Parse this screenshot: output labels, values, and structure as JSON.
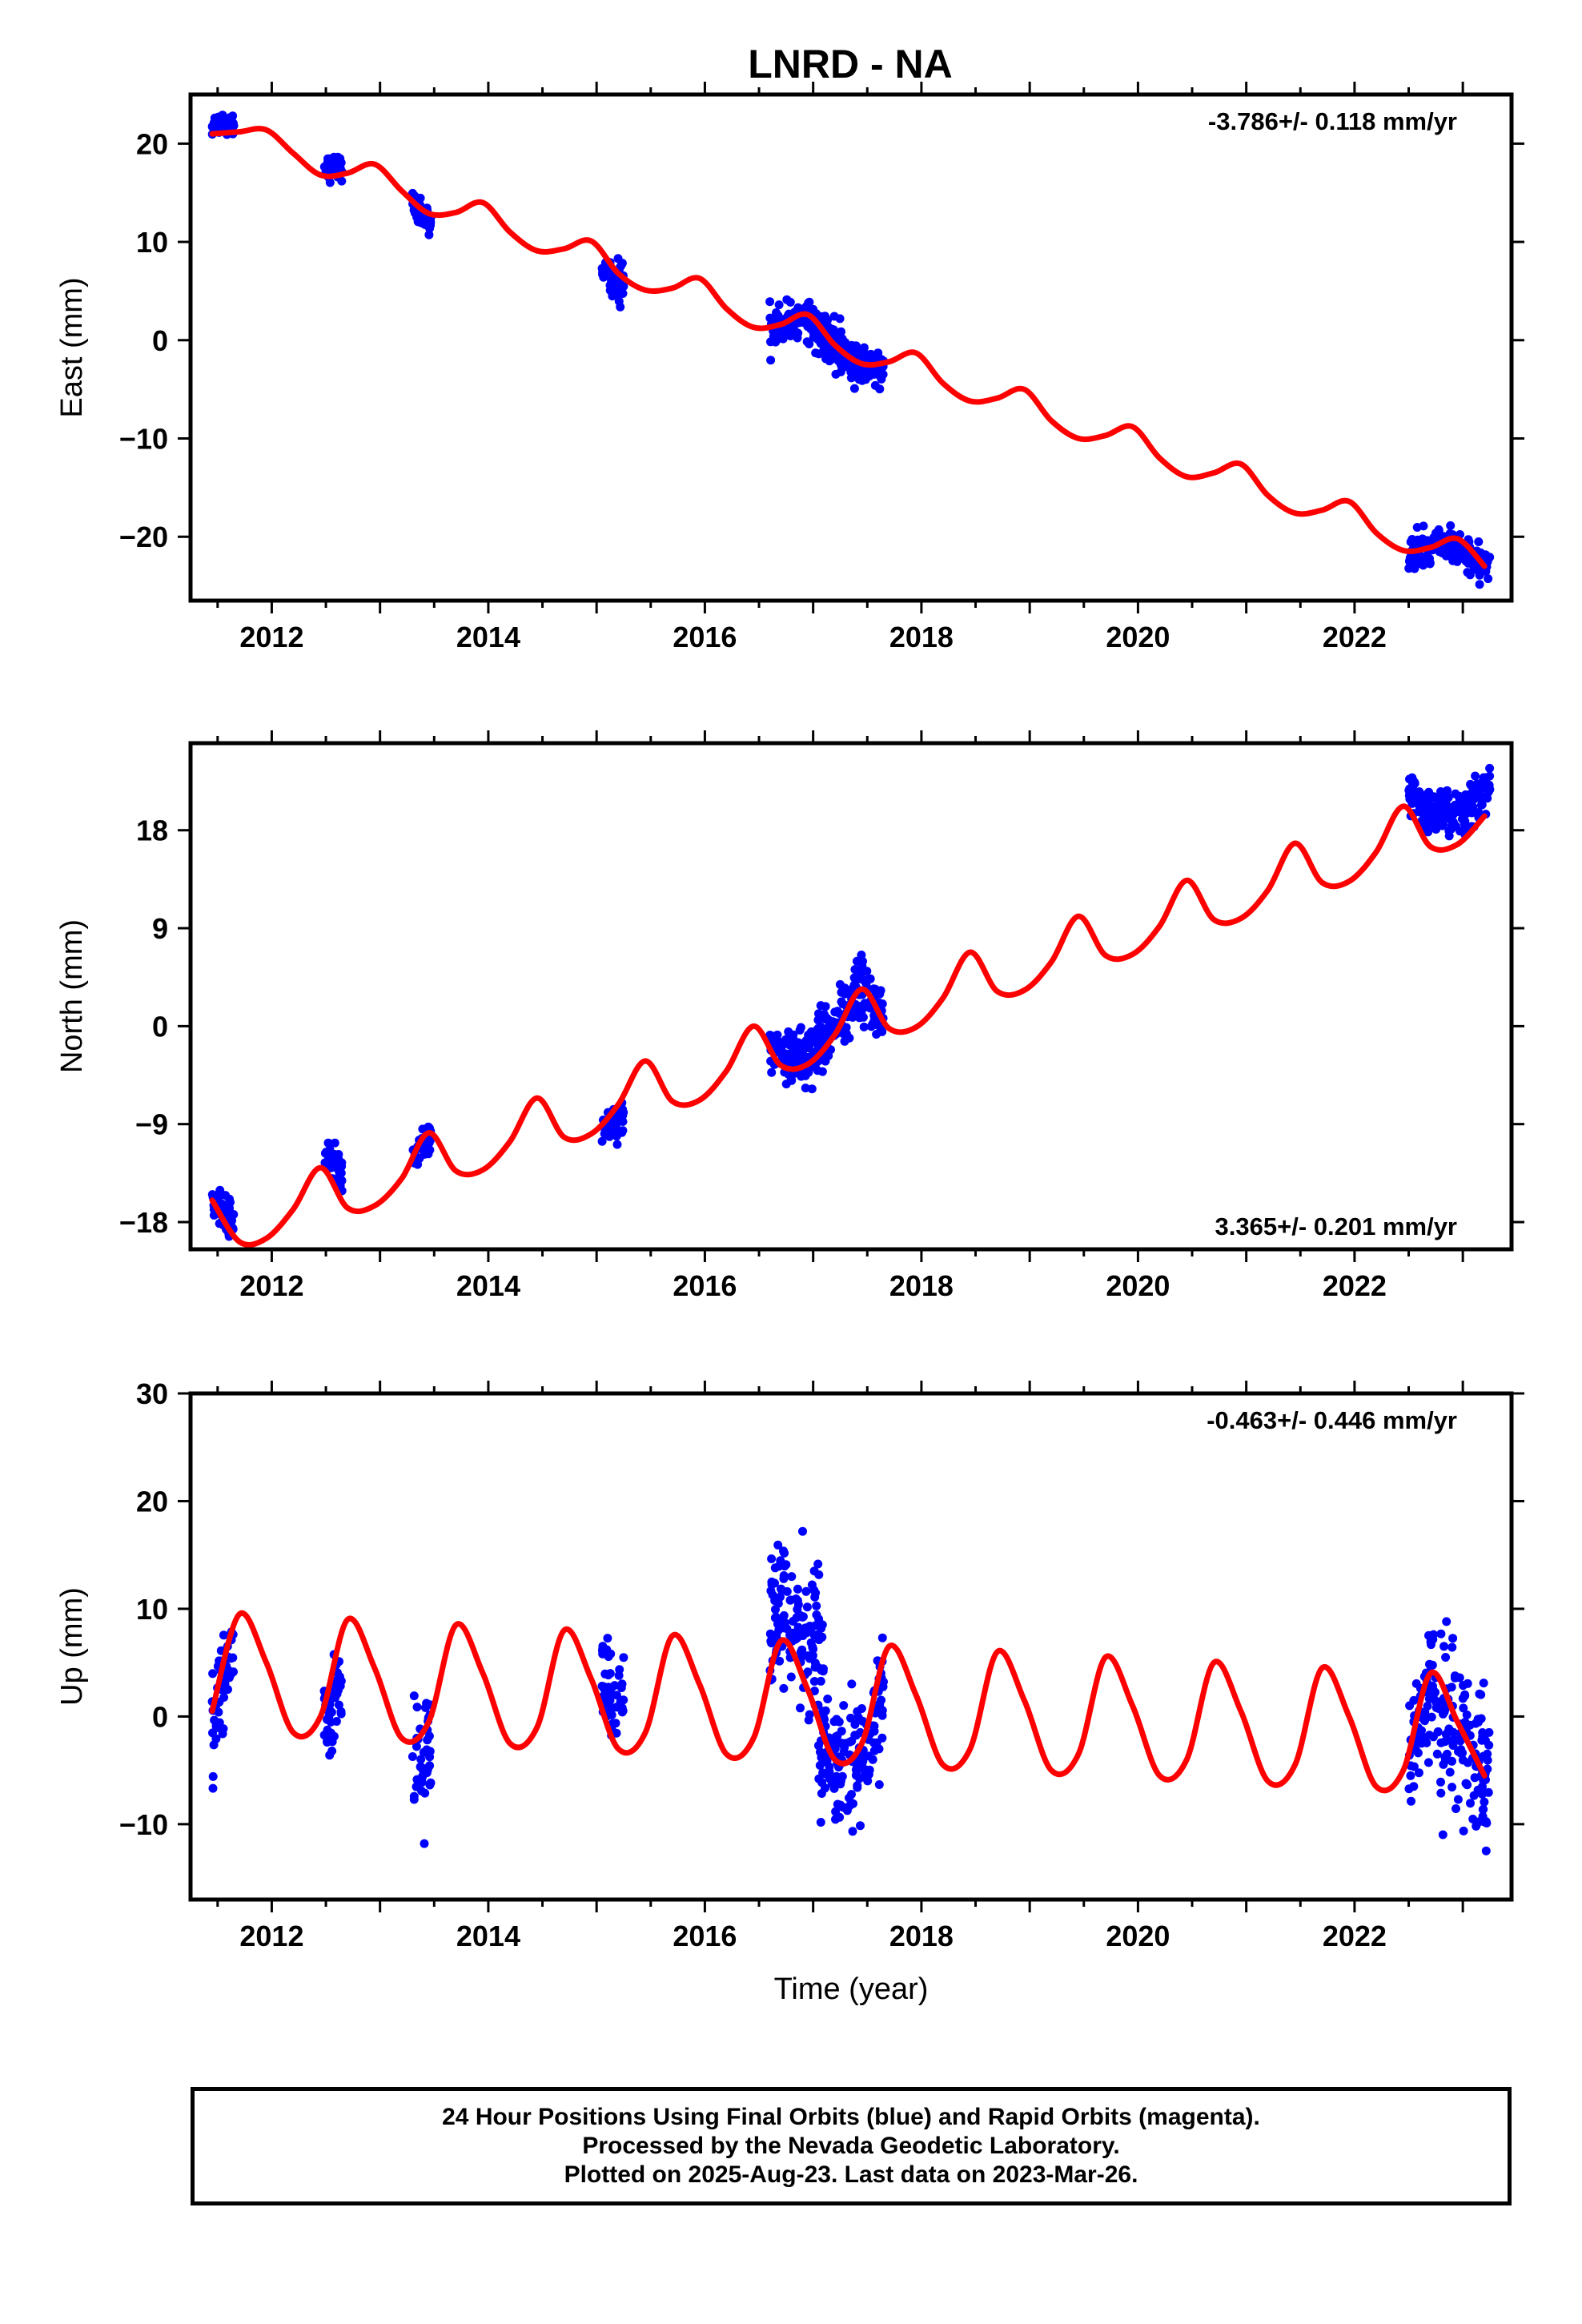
{
  "title": "LNRD - NA",
  "footer": {
    "line1": "24 Hour Positions Using Final Orbits (blue) and Rapid Orbits (magenta).",
    "line2": "Processed by the Nevada Geodetic Laboratory.",
    "line3": "Plotted on 2025-Aug-23. Last data on 2023-Mar-26."
  },
  "colors": {
    "data": "#0000ff",
    "model": "#ff0000",
    "frame": "#000000"
  },
  "chart_data": [
    {
      "type": "scatter",
      "name": "east",
      "ylabel": "East (mm)",
      "xlabel": "",
      "xlim": [
        2011.25,
        2023.45
      ],
      "ylim": [
        -26.5,
        25
      ],
      "xticks": [
        "2012",
        "2014",
        "2016",
        "2018",
        "2020",
        "2022"
      ],
      "yticks": [
        -20,
        -10,
        0,
        10,
        20
      ],
      "rate_label": "-3.786+/- 0.118 mm/yr",
      "rate_position": "top-right",
      "series": [
        {
          "name": "24 Hour Positions",
          "kind": "points",
          "clusters": [
            {
              "start": 2011.45,
              "end": 2011.65,
              "center": 22.0,
              "spread": 1.0
            },
            {
              "start": 2012.48,
              "end": 2012.65,
              "center": 17.5,
              "spread": 1.0
            },
            {
              "start": 2013.3,
              "end": 2013.47,
              "center": 12.8,
              "spread": 1.2
            },
            {
              "start": 2015.05,
              "end": 2015.25,
              "center": 6.5,
              "spread": 1.8
            },
            {
              "start": 2016.6,
              "end": 2017.3,
              "center": 2.2,
              "spread": 1.6
            },
            {
              "start": 2017.0,
              "end": 2017.65,
              "center": -2.0,
              "spread": 1.5
            },
            {
              "start": 2022.5,
              "end": 2023.25,
              "center": -21.0,
              "spread": 1.4
            }
          ]
        },
        {
          "name": "Model",
          "kind": "line",
          "x": [
            2011.45,
            2011.7,
            2011.95,
            2012.2,
            2012.45,
            2012.7,
            2012.95,
            2013.2,
            2013.45,
            2013.7,
            2013.95,
            2014.2,
            2014.45,
            2014.7,
            2014.95,
            2015.2,
            2015.45,
            2015.7,
            2015.95,
            2016.2,
            2016.45,
            2016.7,
            2016.95,
            2017.2,
            2017.45,
            2017.7,
            2017.95,
            2018.2,
            2018.45,
            2018.7,
            2018.95,
            2019.2,
            2019.45,
            2019.7,
            2019.95,
            2020.2,
            2020.45,
            2020.7,
            2020.95,
            2021.2,
            2021.45,
            2021.7,
            2021.95,
            2022.2,
            2022.45,
            2022.7,
            2022.95,
            2023.2
          ],
          "y": [
            21.0,
            21.2,
            21.4,
            19.0,
            16.8,
            17.0,
            17.9,
            15.2,
            12.9,
            13.0,
            14.0,
            11.0,
            9.1,
            9.3,
            10.1,
            6.8,
            5.1,
            5.3,
            6.3,
            3.2,
            1.3,
            1.6,
            2.6,
            -0.5,
            -2.4,
            -2.2,
            -1.3,
            -4.4,
            -6.2,
            -5.9,
            -5.0,
            -8.2,
            -10.0,
            -9.7,
            -8.8,
            -12.0,
            -13.9,
            -13.5,
            -12.6,
            -15.8,
            -17.6,
            -17.3,
            -16.4,
            -19.6,
            -21.4,
            -21.1,
            -20.2,
            -23.0
          ]
        }
      ]
    },
    {
      "type": "scatter",
      "name": "north",
      "ylabel": "North (mm)",
      "xlabel": "",
      "xlim": [
        2011.25,
        2023.45
      ],
      "ylim": [
        -20.5,
        26
      ],
      "xticks": [
        "2012",
        "2014",
        "2016",
        "2018",
        "2020",
        "2022"
      ],
      "yticks": [
        -18,
        -9,
        0,
        9,
        18
      ],
      "rate_label": "3.365+/- 0.201 mm/yr",
      "rate_position": "bottom-right",
      "series": [
        {
          "name": "24 Hour Positions",
          "kind": "points",
          "clusters": [
            {
              "start": 2011.45,
              "end": 2011.65,
              "center": -17.0,
              "spread": 1.3
            },
            {
              "start": 2012.48,
              "end": 2012.65,
              "center": -12.5,
              "spread": 1.3
            },
            {
              "start": 2013.3,
              "end": 2013.47,
              "center": -11.0,
              "spread": 1.5
            },
            {
              "start": 2015.05,
              "end": 2015.25,
              "center": -9.0,
              "spread": 1.3
            },
            {
              "start": 2016.6,
              "end": 2017.05,
              "center": -3.0,
              "spread": 2.0
            },
            {
              "start": 2017.0,
              "end": 2017.65,
              "center": 1.5,
              "spread": 2.5
            },
            {
              "start": 2022.5,
              "end": 2023.25,
              "center": 19.5,
              "spread": 1.6
            }
          ]
        },
        {
          "name": "Model",
          "kind": "line",
          "x": [
            2011.45,
            2011.7,
            2011.95,
            2012.2,
            2012.45,
            2012.7,
            2012.95,
            2013.2,
            2013.45,
            2013.7,
            2013.95,
            2014.2,
            2014.45,
            2014.7,
            2014.95,
            2015.2,
            2015.45,
            2015.7,
            2015.95,
            2016.2,
            2016.45,
            2016.7,
            2016.95,
            2017.2,
            2017.45,
            2017.7,
            2017.95,
            2018.2,
            2018.45,
            2018.7,
            2018.95,
            2019.2,
            2019.45,
            2019.7,
            2019.95,
            2020.2,
            2020.45,
            2020.7,
            2020.95,
            2021.2,
            2021.45,
            2021.7,
            2021.95,
            2022.2,
            2022.45,
            2022.7,
            2022.95,
            2023.2
          ],
          "y": [
            -16.0,
            -19.8,
            -19.5,
            -16.8,
            -13.0,
            -16.7,
            -16.5,
            -14.0,
            -9.8,
            -13.3,
            -13.2,
            -10.6,
            -6.6,
            -10.2,
            -9.9,
            -7.2,
            -3.2,
            -6.9,
            -6.8,
            -4.1,
            0.0,
            -3.6,
            -3.5,
            -0.8,
            3.4,
            -0.2,
            -0.1,
            2.6,
            6.8,
            3.2,
            3.3,
            5.9,
            10.1,
            6.5,
            6.6,
            9.2,
            13.4,
            9.8,
            9.9,
            12.5,
            16.8,
            13.2,
            13.3,
            16.0,
            20.2,
            16.5,
            16.7,
            19.3
          ]
        }
      ]
    },
    {
      "type": "scatter",
      "name": "up",
      "ylabel": "Up (mm)",
      "xlabel": "Time (year)",
      "xlim": [
        2011.25,
        2023.45
      ],
      "ylim": [
        -17,
        30
      ],
      "xticks": [
        "2012",
        "2014",
        "2016",
        "2018",
        "2020",
        "2022"
      ],
      "yticks": [
        -10,
        0,
        10,
        20,
        30
      ],
      "rate_label": "-0.463+/- 0.446 mm/yr",
      "rate_position": "top-right",
      "series": [
        {
          "name": "24 Hour Positions",
          "kind": "points",
          "clusters": [
            {
              "start": 2011.45,
              "end": 2011.65,
              "center": 3.0,
              "spread": 3.5
            },
            {
              "start": 2012.48,
              "end": 2012.65,
              "center": 1.5,
              "spread": 3.5
            },
            {
              "start": 2013.3,
              "end": 2013.47,
              "center": -4.0,
              "spread": 4.5
            },
            {
              "start": 2015.05,
              "end": 2015.25,
              "center": 1.5,
              "spread": 4.0
            },
            {
              "start": 2016.6,
              "end": 2017.1,
              "center": 9.0,
              "spread": 5.5
            },
            {
              "start": 2017.05,
              "end": 2017.65,
              "center": -4.5,
              "spread": 5.0
            },
            {
              "start": 2022.5,
              "end": 2023.25,
              "center": -1.0,
              "spread": 6.0
            }
          ]
        },
        {
          "name": "Model",
          "kind": "line",
          "x": [
            2011.45,
            2011.7,
            2011.95,
            2012.2,
            2012.45,
            2012.7,
            2012.95,
            2013.2,
            2013.45,
            2013.7,
            2013.95,
            2014.2,
            2014.45,
            2014.7,
            2014.95,
            2015.2,
            2015.45,
            2015.7,
            2015.95,
            2016.2,
            2016.45,
            2016.7,
            2016.95,
            2017.2,
            2017.45,
            2017.7,
            2017.95,
            2018.2,
            2018.45,
            2018.7,
            2018.95,
            2019.2,
            2019.45,
            2019.7,
            2019.95,
            2020.2,
            2020.45,
            2020.7,
            2020.95,
            2021.2,
            2021.45,
            2021.7,
            2021.95,
            2022.2,
            2022.45,
            2022.7,
            2022.95,
            2023.2
          ],
          "y": [
            0.5,
            9.5,
            5.0,
            -1.5,
            0.0,
            9.0,
            4.5,
            -2.0,
            -0.5,
            8.5,
            4.0,
            -2.5,
            -1.0,
            8.0,
            3.5,
            -3.0,
            -1.5,
            7.5,
            3.0,
            -3.5,
            -2.0,
            7.0,
            2.5,
            -4.0,
            -2.5,
            6.5,
            2.0,
            -4.5,
            -3.0,
            6.0,
            1.5,
            -5.0,
            -3.5,
            5.5,
            1.0,
            -5.5,
            -4.0,
            5.0,
            0.5,
            -6.0,
            -4.5,
            4.5,
            0.0,
            -6.5,
            -5.0,
            4.0,
            -0.5,
            -5.5
          ]
        }
      ]
    }
  ]
}
